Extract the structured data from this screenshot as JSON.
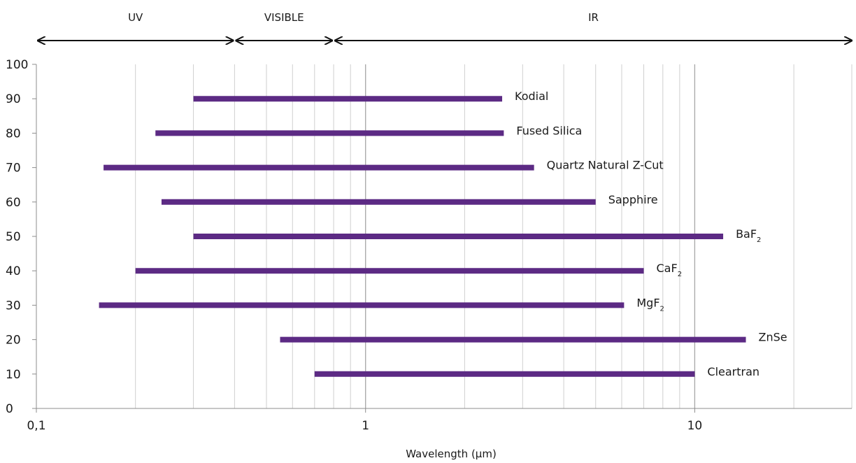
{
  "chart_data": {
    "type": "bar",
    "orientation": "horizontal-range",
    "title": "",
    "xlabel": "Wavelength (µm)",
    "ylabel": "",
    "x_scale": "log",
    "xlim": [
      0.1,
      30
    ],
    "ylim": [
      0,
      100
    ],
    "x_ticks": [
      {
        "value": 0.1,
        "label": "0,1"
      },
      {
        "value": 1,
        "label": "1"
      },
      {
        "value": 10,
        "label": "10"
      }
    ],
    "y_ticks": [
      0,
      10,
      20,
      30,
      40,
      50,
      60,
      70,
      80,
      90,
      100
    ],
    "grid": "vertical",
    "bar_color": "#5c2a84",
    "spectral_regions": [
      {
        "label": "UV",
        "start": 0.1,
        "end": 0.4
      },
      {
        "label": "VISIBLE",
        "start": 0.4,
        "end": 0.8
      },
      {
        "label": "IR",
        "start": 0.8,
        "end": 30
      }
    ],
    "series": [
      {
        "label": "Kodial",
        "subscript": "",
        "y": 90,
        "start": 0.3,
        "end": 2.6
      },
      {
        "label": "Fused Silica",
        "subscript": "",
        "y": 80,
        "start": 0.23,
        "end": 2.63
      },
      {
        "label": "Quartz Natural Z-Cut",
        "subscript": "",
        "y": 70,
        "start": 0.16,
        "end": 3.25
      },
      {
        "label": "Sapphire",
        "subscript": "",
        "y": 60,
        "start": 0.24,
        "end": 5.0
      },
      {
        "label": "BaF",
        "subscript": "2",
        "y": 50,
        "start": 0.3,
        "end": 12.2
      },
      {
        "label": "CaF",
        "subscript": "2",
        "y": 40,
        "start": 0.2,
        "end": 7.0
      },
      {
        "label": "MgF",
        "subscript": "2",
        "y": 30,
        "start": 0.155,
        "end": 6.1
      },
      {
        "label": "ZnSe",
        "subscript": "",
        "y": 20,
        "start": 0.55,
        "end": 14.3
      },
      {
        "label": "Cleartran",
        "subscript": "",
        "y": 10,
        "start": 0.7,
        "end": 10.0
      }
    ]
  }
}
